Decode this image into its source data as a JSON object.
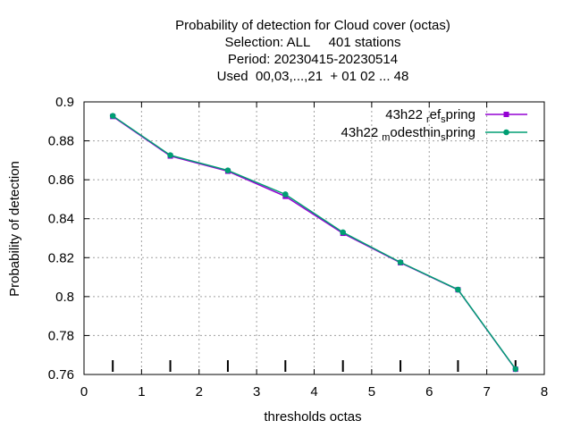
{
  "chart_data": {
    "type": "line",
    "title_lines": [
      "Probability of detection  for Cloud cover (octas)",
      "Selection: ALL     401 stations",
      "Period: 20230415-20230514",
      "Used  00,03,...,21  + 01 02 ... 48"
    ],
    "xlabel": "thresholds octas",
    "ylabel": "Probability of detection",
    "xlim": [
      0,
      8
    ],
    "ylim": [
      0.76,
      0.9
    ],
    "xticks": [
      "0",
      "1",
      "2",
      "3",
      "4",
      "5",
      "6",
      "7",
      "8"
    ],
    "yticks": [
      "0.76",
      "0.78",
      "0.8",
      "0.82",
      "0.84",
      "0.86",
      "0.88",
      "0.9"
    ],
    "grid": true,
    "legend_position": "top-right",
    "x": [
      0.5,
      1.5,
      2.5,
      3.5,
      4.5,
      5.5,
      6.5,
      7.5
    ],
    "series": [
      {
        "legend": {
          "main": "43h22",
          "sub1": "r",
          "mid": "ef",
          "sub2": "s",
          "tail": "pring"
        },
        "color": "#9400D3",
        "values": [
          0.8925,
          0.8722,
          0.8644,
          0.8515,
          0.8325,
          0.8174,
          0.8035,
          0.7627
        ]
      },
      {
        "legend": {
          "main": "43h22",
          "sub1": "m",
          "mid": "odesthin",
          "sub2": "s",
          "tail": "pring"
        },
        "color": "#009E73",
        "values": [
          0.8928,
          0.8726,
          0.8648,
          0.8525,
          0.833,
          0.8176,
          0.8036,
          0.7628
        ]
      }
    ]
  }
}
